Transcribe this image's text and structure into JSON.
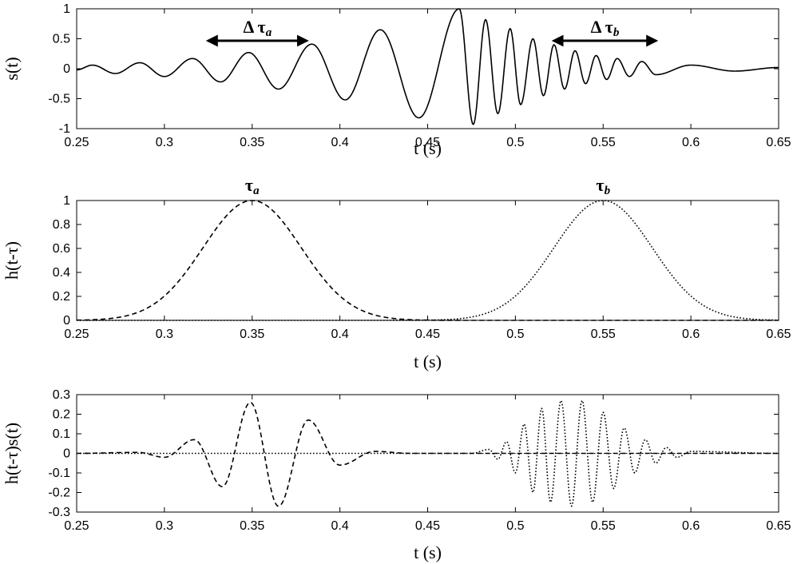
{
  "chart_data": [
    {
      "type": "line",
      "title": "",
      "xlabel": "t (s)",
      "ylabel": "s(t)",
      "xlim": [
        0.25,
        0.65
      ],
      "ylim": [
        -1,
        1
      ],
      "xticks": [
        "0.25",
        "0.3",
        "0.35",
        "0.4",
        "0.45",
        "0.5",
        "0.55",
        "0.6",
        "0.65"
      ],
      "yticks": [
        "1",
        "0.5",
        "0",
        "-0.5",
        "-1"
      ],
      "grid": false,
      "series": [
        {
          "style": "solid",
          "x": [
            0.25,
            0.259,
            0.272,
            0.286,
            0.3,
            0.316,
            0.332,
            0.348,
            0.365,
            0.384,
            0.403,
            0.423,
            0.445,
            0.468,
            0.476,
            0.483,
            0.49,
            0.497,
            0.503,
            0.51,
            0.516,
            0.522,
            0.528,
            0.534,
            0.54,
            0.546,
            0.552,
            0.558,
            0.565,
            0.572,
            0.58,
            0.6,
            0.625,
            0.65
          ],
          "y": [
            -0.02,
            0.06,
            -0.08,
            0.1,
            -0.13,
            0.17,
            -0.22,
            0.27,
            -0.34,
            0.41,
            -0.52,
            0.65,
            -0.82,
            1.0,
            -0.93,
            0.82,
            -0.75,
            0.67,
            -0.6,
            0.5,
            -0.45,
            0.4,
            -0.34,
            0.3,
            -0.25,
            0.22,
            -0.18,
            0.17,
            -0.13,
            0.12,
            -0.1,
            0.06,
            -0.04,
            0.02
          ]
        }
      ],
      "annotations": [
        {
          "label": "Δ τ",
          "sub": "a",
          "x_from": 0.325,
          "x_to": 0.381,
          "y": 0.5
        },
        {
          "label": "Δ τ",
          "sub": "b",
          "x_from": 0.522,
          "x_to": 0.58,
          "y": 0.5
        }
      ]
    },
    {
      "type": "line",
      "title": "",
      "xlabel": "t (s)",
      "ylabel": "h(t-τ)",
      "xlim": [
        0.25,
        0.65
      ],
      "ylim": [
        0,
        1
      ],
      "xticks": [
        "0.25",
        "0.3",
        "0.35",
        "0.4",
        "0.45",
        "0.5",
        "0.55",
        "0.6",
        "0.65"
      ],
      "yticks": [
        "1",
        "0.8",
        "0.6",
        "0.4",
        "0.2",
        "0"
      ],
      "grid": false,
      "series": [
        {
          "style": "dashed",
          "center": 0.35,
          "sigma": 0.028
        },
        {
          "style": "dotted",
          "center": 0.55,
          "sigma": 0.028
        }
      ],
      "annotations": [
        {
          "label": "τ",
          "sub": "a",
          "x": 0.35
        },
        {
          "label": "τ",
          "sub": "b",
          "x": 0.55
        }
      ]
    },
    {
      "type": "line",
      "title": "",
      "xlabel": "t (s)",
      "ylabel": "h(t-τ)s(t)",
      "xlim": [
        0.25,
        0.65
      ],
      "ylim": [
        -0.3,
        0.3
      ],
      "xticks": [
        "0.25",
        "0.3",
        "0.35",
        "0.4",
        "0.45",
        "0.5",
        "0.55",
        "0.6",
        "0.65"
      ],
      "yticks": [
        "0.3",
        "0.2",
        "0.1",
        "0",
        "-0.1",
        "-0.2",
        "-0.3"
      ],
      "grid": false,
      "series": [
        {
          "style": "dashed",
          "x": [
            0.25,
            0.285,
            0.3,
            0.317,
            0.333,
            0.349,
            0.365,
            0.382,
            0.4,
            0.42,
            0.44,
            0.65
          ],
          "y": [
            0,
            0.005,
            -0.02,
            0.07,
            -0.17,
            0.26,
            -0.27,
            0.17,
            -0.06,
            0.01,
            0.0,
            0
          ]
        },
        {
          "style": "dotted",
          "x": [
            0.25,
            0.475,
            0.485,
            0.49,
            0.495,
            0.5,
            0.505,
            0.51,
            0.515,
            0.52,
            0.526,
            0.532,
            0.538,
            0.544,
            0.55,
            0.556,
            0.562,
            0.568,
            0.574,
            0.58,
            0.586,
            0.592,
            0.6,
            0.65
          ],
          "y": [
            0,
            0.0,
            0.02,
            -0.03,
            0.06,
            -0.1,
            0.15,
            -0.2,
            0.23,
            -0.25,
            0.27,
            -0.27,
            0.27,
            -0.25,
            0.21,
            -0.18,
            0.13,
            -0.1,
            0.07,
            -0.05,
            0.03,
            -0.02,
            0.01,
            0
          ]
        }
      ]
    }
  ]
}
